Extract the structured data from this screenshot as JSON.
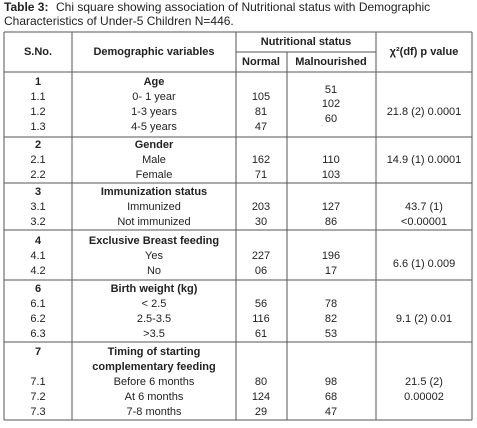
{
  "caption": {
    "label": "Table 3:",
    "lines": [
      "Chi square showing association of Nutritional status with Demographic",
      "Characteristics of Under-5 Children  N=446."
    ]
  },
  "table": {
    "header": {
      "sno": "S.No.",
      "variable": "Demographic variables",
      "group": "Nutritional status",
      "normal": "Normal",
      "malnourished": "Malnourished",
      "p_value": "χ²(df) p value"
    },
    "groups": [
      {
        "sno": "1",
        "variable": [
          "Age"
        ],
        "rows": [
          {
            "sno": "1.1",
            "label": "0- 1 year",
            "normal": "105",
            "malnourished": "51"
          },
          {
            "sno": "1.2",
            "label": "1-3 years",
            "normal": "81",
            "malnourished": "102"
          },
          {
            "sno": "1.3",
            "label": "4-5 years",
            "normal": "47",
            "malnourished": "60"
          }
        ],
        "p_value": [
          "21.8 (2) 0.0001"
        ]
      },
      {
        "sno": "2",
        "variable": [
          "Gender"
        ],
        "rows": [
          {
            "sno": "2.1",
            "label": "Male",
            "normal": "162",
            "malnourished": "110"
          },
          {
            "sno": "2.2",
            "label": "Female",
            "normal": "71",
            "malnourished": "103"
          }
        ],
        "p_value": [
          "14.9 (1) 0.0001"
        ]
      },
      {
        "sno": "3",
        "variable": [
          "Immunization status"
        ],
        "rows": [
          {
            "sno": "3.1",
            "label": "Immunized",
            "normal": "203",
            "malnourished": "127"
          },
          {
            "sno": "3.2",
            "label": "Not immunized",
            "normal": "30",
            "malnourished": "86"
          }
        ],
        "p_value": [
          "43.7 (1)",
          "<0.00001"
        ]
      },
      {
        "sno": "4",
        "variable": [
          "Exclusive Breast feeding"
        ],
        "rows": [
          {
            "sno": "4.1",
            "label": "Yes",
            "normal": "227",
            "malnourished": "196"
          },
          {
            "sno": "4.2",
            "label": "No",
            "normal": "06",
            "malnourished": "17"
          }
        ],
        "p_value": [
          "6.6 (1) 0.009"
        ]
      },
      {
        "sno": "6",
        "variable": [
          "Birth weight (kg)"
        ],
        "rows": [
          {
            "sno": "6.1",
            "label": "< 2.5",
            "normal": "56",
            "malnourished": "78"
          },
          {
            "sno": "6.2",
            "label": "2.5-3.5",
            "normal": "116",
            "malnourished": "82"
          },
          {
            "sno": "6.3",
            "label": ">3.5",
            "normal": "61",
            "malnourished": "53"
          }
        ],
        "p_value": [
          "9.1 (2) 0.01"
        ]
      },
      {
        "sno": "7",
        "variable": [
          "Timing of starting",
          "complementary feeding"
        ],
        "rows": [
          {
            "sno": "7.1",
            "label": "Before 6 months",
            "normal": "80",
            "malnourished": "98"
          },
          {
            "sno": "7.2",
            "label": "At 6 months",
            "normal": "124",
            "malnourished": "68"
          },
          {
            "sno": "7.3",
            "label": "7-8 months",
            "normal": "29",
            "malnourished": "47"
          }
        ],
        "p_value": [
          "21.5 (2)",
          "0.00002"
        ]
      }
    ]
  }
}
